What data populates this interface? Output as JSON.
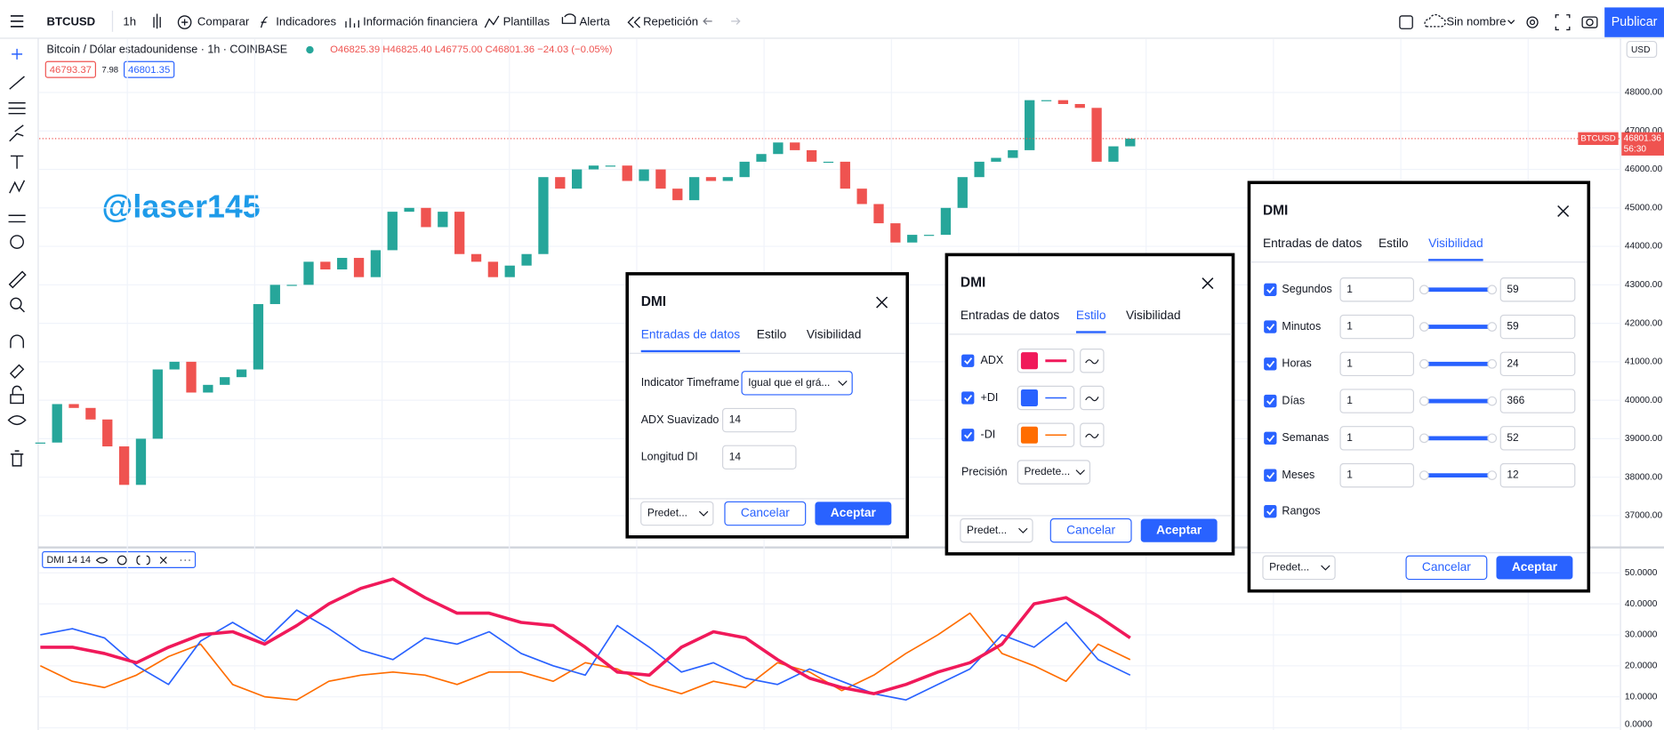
{
  "toolbar": {
    "symbol": "BTCUSD",
    "interval": "1h",
    "items": [
      "Comparar",
      "Indicadores",
      "Información financiera",
      "Plantillas",
      "Alerta",
      "Repetición"
    ],
    "layout_name": "Sin nombre",
    "publish": "Publicar"
  },
  "legend": {
    "title": "Bitcoin / Dólar estadounidense · 1h · COINBASE",
    "ohlc": "O46825.39 H46825.40 L46775.00 C46801.36 −24.03 (−0.05%)",
    "bid": "46793.37",
    "spread": "7.98",
    "ask": "46801.35",
    "currency": "USD",
    "price_tag_symbol": "BTCUSD",
    "price_tag_value": "46801.36",
    "countdown": "56:30",
    "watermark": "@laser145",
    "indicator": "DMI 14 14"
  },
  "chart_data": [
    {
      "type": "candlestick",
      "up_color": "#26a69a",
      "down_color": "#ef5350",
      "values": [
        38900,
        39900,
        39800,
        39500,
        38800,
        37800,
        39000,
        40800,
        41000,
        40200,
        40400,
        40600,
        40800,
        42500,
        43000,
        43000,
        43600,
        43400,
        43700,
        43200,
        43900,
        44900,
        45000,
        44500,
        44900,
        43800,
        43600,
        43200,
        43500,
        43800,
        45800,
        45500,
        46000,
        46100,
        46100,
        45700,
        46000,
        45500,
        45200,
        45800,
        45700,
        45800,
        46200,
        46400,
        46700,
        46500,
        46200,
        46200,
        45500,
        45100,
        44600,
        44100,
        44300,
        44300,
        45000,
        45800,
        46200,
        46300,
        46500,
        47800,
        47800,
        47700,
        47600,
        46200,
        46600,
        46801.36
      ],
      "ylim": [
        36200,
        49300
      ],
      "yticks": [
        {
          "value": 37000,
          "label": "37000.00"
        },
        {
          "value": 38000,
          "label": "38000.00"
        },
        {
          "value": 39000,
          "label": "39000.00"
        },
        {
          "value": 40000,
          "label": "40000.00"
        },
        {
          "value": 41000,
          "label": "41000.00"
        },
        {
          "value": 42000,
          "label": "42000.00"
        },
        {
          "value": 43000,
          "label": "43000.00"
        },
        {
          "value": 44000,
          "label": "44000.00"
        },
        {
          "value": 45000,
          "label": "45000.00"
        },
        {
          "value": 46000,
          "label": "46000.00"
        },
        {
          "value": 47000,
          "label": "47000.00"
        },
        {
          "value": 48000,
          "label": "48000.00"
        }
      ],
      "grid": true
    },
    {
      "type": "line",
      "series": [
        {
          "name": "ADX",
          "color": "#f0195a",
          "values": [
            26,
            26,
            24,
            21,
            26,
            30,
            31,
            27,
            33,
            40,
            45,
            48,
            42,
            37,
            37,
            34,
            33,
            26,
            18,
            17,
            26,
            31,
            29,
            22,
            16,
            13,
            11,
            14,
            18,
            21,
            27,
            40,
            42,
            36,
            29
          ]
        },
        {
          "name": "+DI",
          "color": "#2962ff",
          "values": [
            30,
            32,
            29,
            20,
            14,
            28,
            34,
            28,
            38,
            32,
            25,
            22,
            29,
            27,
            31,
            24,
            20,
            17,
            33,
            26,
            18,
            21,
            16,
            14,
            19,
            15,
            11,
            9,
            14,
            19,
            30,
            26,
            34,
            22,
            17
          ]
        },
        {
          "name": "-DI",
          "color": "#ff6d00",
          "values": [
            20,
            15,
            13,
            17,
            23,
            27,
            14,
            10,
            9,
            15,
            17,
            18,
            17,
            14,
            18,
            18,
            15,
            21,
            19,
            14,
            11,
            15,
            13,
            21,
            18,
            12,
            17,
            24,
            30,
            37,
            24,
            20,
            15,
            27,
            22
          ]
        }
      ],
      "ylim": [
        -0.7,
        57.5
      ],
      "yticks": [
        {
          "value": 0,
          "label": "0.0000"
        },
        {
          "value": 10,
          "label": "10.0000"
        },
        {
          "value": 20,
          "label": "20.0000"
        },
        {
          "value": 30,
          "label": "30.0000"
        },
        {
          "value": 40,
          "label": "40.0000"
        },
        {
          "value": 50,
          "label": "50.0000"
        }
      ],
      "grid": true
    }
  ],
  "dialogs": [
    {
      "title": "DMI",
      "tabs": [
        "Entradas de datos",
        "Estilo",
        "Visibilidad"
      ],
      "active": 0,
      "rows": [
        {
          "label": "Indicator Timeframe",
          "input": "Igual que el grá..."
        },
        {
          "label": "ADX Suavizado",
          "input": "14"
        },
        {
          "label": "Longitud DI",
          "input": "14"
        }
      ],
      "preset": "Predet...",
      "cancel": "Cancelar",
      "ok": "Aceptar"
    },
    {
      "title": "DMI",
      "tabs": [
        "Entradas de datos",
        "Estilo",
        "Visibilidad"
      ],
      "active": 1,
      "styles": [
        {
          "label": "ADX",
          "color": "#f0195a"
        },
        {
          "label": "+DI",
          "color": "#2962ff"
        },
        {
          "label": "-DI",
          "color": "#ff6d00"
        }
      ],
      "precision_label": "Precisión",
      "precision": "Predete...",
      "preset": "Predet...",
      "cancel": "Cancelar",
      "ok": "Aceptar"
    },
    {
      "title": "DMI",
      "tabs": [
        "Entradas de datos",
        "Estilo",
        "Visibilidad"
      ],
      "active": 2,
      "visibility": [
        {
          "label": "Segundos",
          "from": "1",
          "to": "59"
        },
        {
          "label": "Minutos",
          "from": "1",
          "to": "59"
        },
        {
          "label": "Horas",
          "from": "1",
          "to": "24"
        },
        {
          "label": "Días",
          "from": "1",
          "to": "366"
        },
        {
          "label": "Semanas",
          "from": "1",
          "to": "52"
        },
        {
          "label": "Meses",
          "from": "1",
          "to": "12"
        }
      ],
      "last": "Rangos",
      "preset": "Predet...",
      "cancel": "Cancelar",
      "ok": "Aceptar"
    }
  ]
}
